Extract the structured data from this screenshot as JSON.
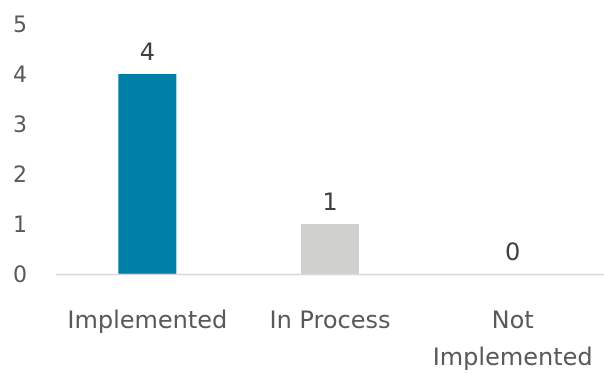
{
  "chart_data": {
    "type": "bar",
    "title": "",
    "xlabel": "",
    "ylabel": "",
    "categories": [
      "Implemented",
      "In Process",
      "Not Implemented"
    ],
    "category_label_lines": [
      [
        "Implemented"
      ],
      [
        "In Process"
      ],
      [
        "Not",
        "Implemented"
      ]
    ],
    "values": [
      4,
      1,
      0
    ],
    "data_labels": [
      "4",
      "1",
      "0"
    ],
    "bar_colors": [
      "#0080A8",
      "#D0D1CF",
      "#D0D1CF"
    ],
    "ylim": [
      0,
      5
    ],
    "yticks": [
      0,
      1,
      2,
      3,
      4,
      5
    ],
    "ytick_labels": [
      "0",
      "1",
      "2",
      "3",
      "4",
      "5"
    ],
    "grid": false,
    "legend": "none"
  }
}
